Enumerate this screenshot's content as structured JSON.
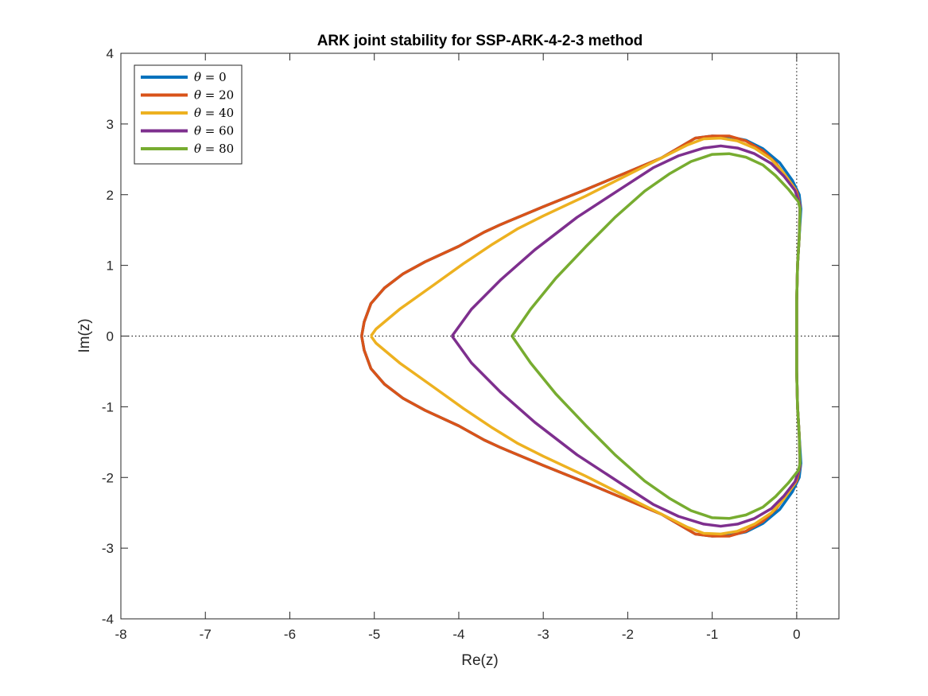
{
  "chart_data": {
    "type": "line",
    "title": "ARK joint stability for SSP-ARK-4-2-3 method",
    "xlabel": "Re(z)",
    "ylabel": "Im(z)",
    "xlim": [
      -8,
      0.5
    ],
    "ylim": [
      -4,
      4
    ],
    "xticks": [
      -8,
      -7,
      -6,
      -5,
      -4,
      -3,
      -2,
      -1,
      0
    ],
    "yticks": [
      -4,
      -3,
      -2,
      -1,
      0,
      1,
      2,
      3,
      4
    ],
    "grid": false,
    "legend_position": "top-left",
    "reference_lines": [
      "y = 0 (dotted)",
      "x = 0 (dotted)"
    ],
    "series": [
      {
        "name": "θ = 0",
        "color": "#0072BD",
        "upper": [
          [
            -5.15,
            0
          ],
          [
            -5.12,
            0.2
          ],
          [
            -5.04,
            0.46
          ],
          [
            -4.88,
            0.68
          ],
          [
            -4.66,
            0.88
          ],
          [
            -4.4,
            1.05
          ],
          [
            -4.0,
            1.27
          ],
          [
            -3.7,
            1.47
          ],
          [
            -3.5,
            1.58
          ],
          [
            -3.0,
            1.83
          ],
          [
            -2.5,
            2.07
          ],
          [
            -2.0,
            2.32
          ],
          [
            -1.6,
            2.52
          ],
          [
            -1.2,
            2.8
          ],
          [
            -1.0,
            2.83
          ],
          [
            -0.8,
            2.82
          ],
          [
            -0.6,
            2.77
          ],
          [
            -0.4,
            2.65
          ],
          [
            -0.2,
            2.45
          ],
          [
            -0.05,
            2.2
          ],
          [
            0.03,
            2.0
          ],
          [
            0.05,
            1.8
          ],
          [
            0.03,
            1.4
          ],
          [
            0.01,
            1.0
          ],
          [
            0.0,
            0.5
          ],
          [
            0.0,
            0
          ]
        ]
      },
      {
        "name": "θ = 20",
        "color": "#D95319",
        "upper": [
          [
            -5.15,
            0
          ],
          [
            -5.12,
            0.2
          ],
          [
            -5.04,
            0.46
          ],
          [
            -4.88,
            0.68
          ],
          [
            -4.66,
            0.88
          ],
          [
            -4.4,
            1.05
          ],
          [
            -4.0,
            1.27
          ],
          [
            -3.7,
            1.47
          ],
          [
            -3.5,
            1.58
          ],
          [
            -3.0,
            1.83
          ],
          [
            -2.5,
            2.07
          ],
          [
            -2.0,
            2.32
          ],
          [
            -1.6,
            2.52
          ],
          [
            -1.2,
            2.8
          ],
          [
            -1.0,
            2.83
          ],
          [
            -0.8,
            2.83
          ],
          [
            -0.6,
            2.76
          ],
          [
            -0.4,
            2.62
          ],
          [
            -0.25,
            2.45
          ],
          [
            -0.1,
            2.22
          ],
          [
            0.0,
            2.05
          ],
          [
            0.04,
            1.85
          ],
          [
            0.03,
            1.4
          ],
          [
            0.01,
            1.0
          ],
          [
            0.0,
            0.5
          ],
          [
            0.0,
            0
          ]
        ]
      },
      {
        "name": "θ = 40",
        "color": "#EDB120",
        "upper": [
          [
            -5.04,
            0
          ],
          [
            -4.98,
            0.1
          ],
          [
            -4.7,
            0.38
          ],
          [
            -4.3,
            0.72
          ],
          [
            -3.95,
            1.02
          ],
          [
            -3.6,
            1.3
          ],
          [
            -3.3,
            1.52
          ],
          [
            -3.0,
            1.7
          ],
          [
            -2.5,
            1.98
          ],
          [
            -2.0,
            2.28
          ],
          [
            -1.6,
            2.52
          ],
          [
            -1.3,
            2.7
          ],
          [
            -1.1,
            2.79
          ],
          [
            -0.9,
            2.8
          ],
          [
            -0.7,
            2.76
          ],
          [
            -0.5,
            2.66
          ],
          [
            -0.3,
            2.5
          ],
          [
            -0.15,
            2.3
          ],
          [
            -0.02,
            2.08
          ],
          [
            0.04,
            1.85
          ],
          [
            0.03,
            1.4
          ],
          [
            0.01,
            1.0
          ],
          [
            0.0,
            0.5
          ],
          [
            0.0,
            0
          ]
        ]
      },
      {
        "name": "θ = 60",
        "color": "#7E2F8E",
        "upper": [
          [
            -4.08,
            0
          ],
          [
            -3.85,
            0.38
          ],
          [
            -3.5,
            0.8
          ],
          [
            -3.1,
            1.22
          ],
          [
            -2.6,
            1.68
          ],
          [
            -2.1,
            2.07
          ],
          [
            -1.7,
            2.38
          ],
          [
            -1.4,
            2.55
          ],
          [
            -1.1,
            2.66
          ],
          [
            -0.9,
            2.69
          ],
          [
            -0.7,
            2.66
          ],
          [
            -0.5,
            2.58
          ],
          [
            -0.3,
            2.44
          ],
          [
            -0.15,
            2.26
          ],
          [
            -0.02,
            2.06
          ],
          [
            0.04,
            1.85
          ],
          [
            0.03,
            1.4
          ],
          [
            0.01,
            1.0
          ],
          [
            0.0,
            0.5
          ],
          [
            0.0,
            0
          ]
        ]
      },
      {
        "name": "θ = 80",
        "color": "#77AC30",
        "upper": [
          [
            -3.37,
            0
          ],
          [
            -3.15,
            0.38
          ],
          [
            -2.85,
            0.82
          ],
          [
            -2.5,
            1.26
          ],
          [
            -2.15,
            1.68
          ],
          [
            -1.8,
            2.05
          ],
          [
            -1.5,
            2.3
          ],
          [
            -1.25,
            2.47
          ],
          [
            -1.0,
            2.57
          ],
          [
            -0.8,
            2.58
          ],
          [
            -0.6,
            2.53
          ],
          [
            -0.4,
            2.42
          ],
          [
            -0.25,
            2.27
          ],
          [
            -0.1,
            2.08
          ],
          [
            0.02,
            1.9
          ],
          [
            0.04,
            1.8
          ],
          [
            0.03,
            1.4
          ],
          [
            0.01,
            1.0
          ],
          [
            0.0,
            0.5
          ],
          [
            0.0,
            0
          ]
        ]
      }
    ]
  }
}
